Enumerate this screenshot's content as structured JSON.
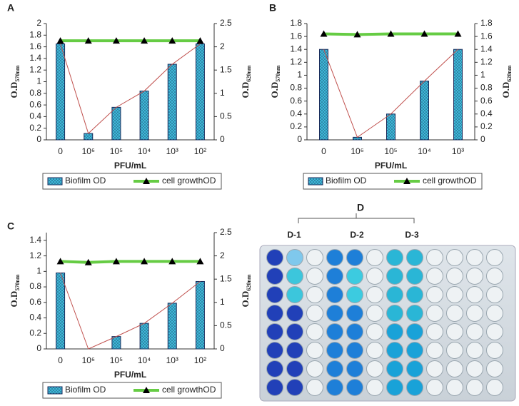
{
  "chart_data": [
    {
      "type": "bar",
      "panel": "A",
      "xlabel": "PFU/mL",
      "ylabel": [
        "O.D",
        "570nm"
      ],
      "y2label": [
        "O.D",
        "620nm"
      ],
      "categories": [
        "0",
        "10⁶",
        "10⁵",
        "10⁴",
        "10³",
        "10²"
      ],
      "series": [
        {
          "name": "Biofilm OD",
          "color": "#3fb8d8",
          "connect_color": "#c0504d",
          "values": [
            1.65,
            0.11,
            0.56,
            0.84,
            1.3,
            1.65
          ]
        },
        {
          "name": "cell growthOD",
          "color": "#66cc44",
          "axis": "y2",
          "values": [
            2.13,
            2.13,
            2.13,
            2.13,
            2.13,
            2.13
          ]
        }
      ],
      "ylim": [
        0,
        2
      ],
      "yticks": [
        0,
        0.2,
        0.4,
        0.6,
        0.8,
        1,
        1.2,
        1.4,
        1.6,
        1.8,
        2
      ],
      "y2lim": [
        0,
        2.5
      ],
      "y2ticks": [
        0,
        0.5,
        1,
        1.5,
        2,
        2.5
      ]
    },
    {
      "type": "bar",
      "panel": "B",
      "xlabel": "PFU/mL",
      "ylabel": [
        "O.D",
        "570nm"
      ],
      "y2label": [
        "O.D",
        "620nm"
      ],
      "categories": [
        "0",
        "10⁶",
        "10⁵",
        "10⁴",
        "10³"
      ],
      "series": [
        {
          "name": "Biofilm OD",
          "color": "#3fb8d8",
          "connect_color": "#c0504d",
          "values": [
            1.4,
            0.04,
            0.4,
            0.91,
            1.4
          ]
        },
        {
          "name": "cell growthOD",
          "color": "#66cc44",
          "axis": "y2",
          "values": [
            1.64,
            1.63,
            1.64,
            1.64,
            1.64
          ]
        }
      ],
      "ylim": [
        0,
        1.8
      ],
      "yticks": [
        0,
        0.2,
        0.4,
        0.6,
        0.8,
        1,
        1.2,
        1.4,
        1.6,
        1.8
      ],
      "y2lim": [
        0,
        1.8
      ],
      "y2ticks": [
        0,
        0.2,
        0.4,
        0.6,
        0.8,
        1,
        1.2,
        1.4,
        1.6,
        1.8
      ]
    },
    {
      "type": "bar",
      "panel": "C",
      "xlabel": "PFU/mL",
      "ylabel": [
        "O.D",
        "570nm"
      ],
      "y2label": [
        "O.D",
        "620nm"
      ],
      "categories": [
        "0",
        "10⁶",
        "10⁵",
        "10⁴",
        "10³",
        "10²"
      ],
      "series": [
        {
          "name": "Biofilm OD",
          "color": "#3fb8d8",
          "connect_color": "#c0504d",
          "values": [
            0.98,
            0,
            0.16,
            0.33,
            0.59,
            0.87
          ]
        },
        {
          "name": "cell growthOD",
          "color": "#66cc44",
          "axis": "y2",
          "values": [
            1.88,
            1.86,
            1.88,
            1.88,
            1.88,
            1.88
          ]
        }
      ],
      "ylim": [
        0,
        1.5
      ],
      "yticks": [
        0,
        0.2,
        0.4,
        0.6,
        0.8,
        1,
        1.2,
        1.4
      ],
      "y2lim": [
        0,
        2.5
      ],
      "y2ticks": [
        0,
        0.5,
        1,
        1.5,
        2,
        2.5
      ]
    }
  ],
  "photo": {
    "label": "D",
    "columns": [
      "D-1",
      "D-2",
      "D-3"
    ]
  }
}
